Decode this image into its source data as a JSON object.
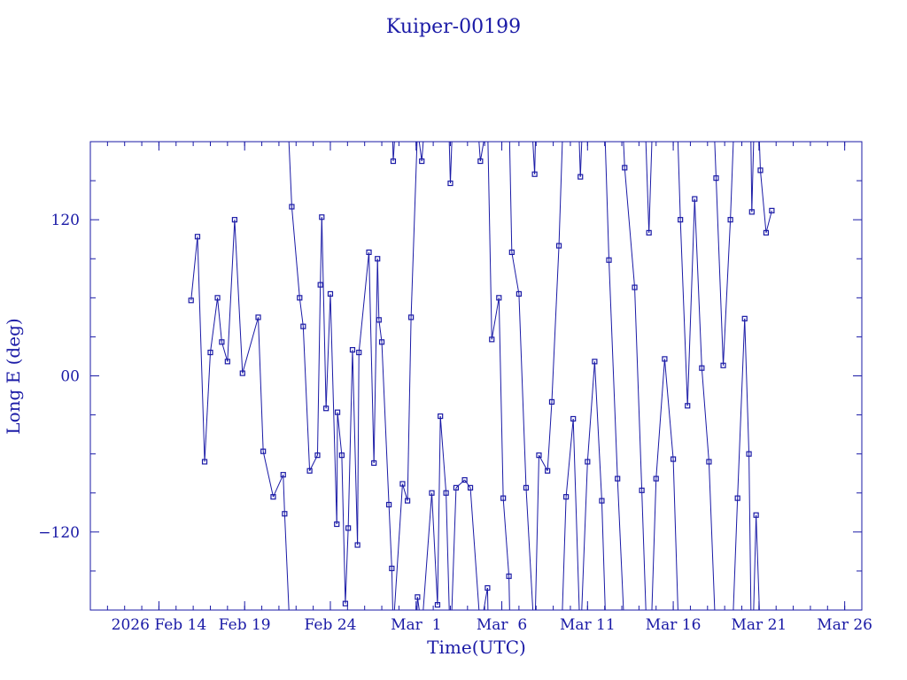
{
  "chart_data": {
    "type": "scatter",
    "title": "Kuiper-00199",
    "xlabel": "Time(UTC)",
    "ylabel": "Long E (deg)",
    "ylim": [
      -180,
      180
    ],
    "xlim": [
      "2026-02-10",
      "2026-03-27"
    ],
    "yticks": [
      {
        "value": 120,
        "label": "120"
      },
      {
        "value": 0,
        "label": "00"
      },
      {
        "value": -120,
        "label": "−120"
      }
    ],
    "xticks": [
      {
        "date": "2026-02-14",
        "label": "2026 Feb 14"
      },
      {
        "date": "2026-02-19",
        "label": "Feb 19"
      },
      {
        "date": "2026-02-24",
        "label": "Feb 24"
      },
      {
        "date": "2026-03-01",
        "label": "Mar  1"
      },
      {
        "date": "2026-03-06",
        "label": "Mar  6"
      },
      {
        "date": "2026-03-11",
        "label": "Mar 11"
      },
      {
        "date": "2026-03-16",
        "label": "Mar 16"
      },
      {
        "date": "2026-03-21",
        "label": "Mar 21"
      },
      {
        "date": "2026-03-26",
        "label": "Mar 26"
      }
    ],
    "grid": false,
    "line_color": "#1a1aa6",
    "marker": "square",
    "series": [
      {
        "points": [
          [
            "2026-02-15T21:00",
            58
          ],
          [
            "2026-02-16T06:00",
            107
          ],
          [
            "2026-02-16T16:00",
            -66
          ],
          [
            "2026-02-17T00:00",
            18
          ],
          [
            "2026-02-17T10:00",
            60
          ],
          [
            "2026-02-17T16:00",
            26
          ],
          [
            "2026-02-18T00:00",
            11
          ],
          [
            "2026-02-18T10:00",
            120
          ],
          [
            "2026-02-18T21:00",
            2
          ],
          [
            "2026-02-19T19:00",
            45
          ],
          [
            "2026-02-20T02:00",
            -58
          ],
          [
            "2026-02-20T16:00",
            -93
          ],
          [
            "2026-02-21T06:00",
            -76
          ],
          [
            "2026-02-21T08:00",
            -106
          ],
          [
            "2026-02-21T18:00",
            130
          ],
          [
            "2026-02-22T05:00",
            60
          ],
          [
            "2026-02-22T10:00",
            38
          ],
          [
            "2026-02-22T19:00",
            -73
          ],
          [
            "2026-02-23T06:00",
            -61
          ],
          [
            "2026-02-23T10:00",
            70
          ],
          [
            "2026-02-23T12:00",
            122
          ],
          [
            "2026-02-23T18:00",
            -25
          ],
          [
            "2026-02-24T00:00",
            63
          ],
          [
            "2026-02-24T09:00",
            -114
          ],
          [
            "2026-02-24T10:00",
            -28
          ],
          [
            "2026-02-24T16:00",
            -61
          ],
          [
            "2026-02-24T21:00",
            -175
          ],
          [
            "2026-02-25T01:00",
            -117
          ],
          [
            "2026-02-25T07:00",
            20
          ],
          [
            "2026-02-25T14:00",
            -130
          ],
          [
            "2026-02-25T16:00",
            18
          ],
          [
            "2026-02-26T06:00",
            95
          ],
          [
            "2026-02-26T13:00",
            -67
          ],
          [
            "2026-02-26T18:00",
            90
          ],
          [
            "2026-02-26T20:00",
            43
          ],
          [
            "2026-02-27T00:00",
            26
          ],
          [
            "2026-02-27T10:00",
            -99
          ],
          [
            "2026-02-27T14:00",
            -148
          ],
          [
            "2026-02-27T16:00",
            165
          ],
          [
            "2026-02-28T05:00",
            -83
          ],
          [
            "2026-02-28T12:00",
            -96
          ],
          [
            "2026-02-28T17:00",
            45
          ],
          [
            "2026-03-01T02:00",
            -170
          ],
          [
            "2026-03-01T08:00",
            165
          ],
          [
            "2026-03-01T22:00",
            -90
          ],
          [
            "2026-03-02T06:00",
            -176
          ],
          [
            "2026-03-02T10:00",
            -31
          ],
          [
            "2026-03-02T18:00",
            -90
          ],
          [
            "2026-03-03T00:00",
            148
          ],
          [
            "2026-03-03T08:00",
            -86
          ],
          [
            "2026-03-03T20:00",
            -80
          ],
          [
            "2026-03-04T04:00",
            -86
          ],
          [
            "2026-03-04T18:00",
            165
          ],
          [
            "2026-03-05T04:00",
            -163
          ],
          [
            "2026-03-05T10:00",
            28
          ],
          [
            "2026-03-05T20:00",
            60
          ],
          [
            "2026-03-06T02:00",
            -94
          ],
          [
            "2026-03-06T10:00",
            -154
          ],
          [
            "2026-03-06T14:00",
            95
          ],
          [
            "2026-03-07T00:00",
            63
          ],
          [
            "2026-03-07T10:00",
            -86
          ],
          [
            "2026-03-07T22:00",
            155
          ],
          [
            "2026-03-08T04:00",
            -61
          ],
          [
            "2026-03-08T16:00",
            -73
          ],
          [
            "2026-03-08T22:00",
            -20
          ],
          [
            "2026-03-09T08:00",
            100
          ],
          [
            "2026-03-09T18:00",
            -93
          ],
          [
            "2026-03-10T04:00",
            -33
          ],
          [
            "2026-03-10T14:00",
            153
          ],
          [
            "2026-03-11T00:00",
            -66
          ],
          [
            "2026-03-11T10:00",
            11
          ],
          [
            "2026-03-11T20:00",
            -96
          ],
          [
            "2026-03-12T06:00",
            89
          ],
          [
            "2026-03-12T18:00",
            -79
          ],
          [
            "2026-03-13T04:00",
            160
          ],
          [
            "2026-03-13T18:00",
            68
          ],
          [
            "2026-03-14T04:00",
            -88
          ],
          [
            "2026-03-14T14:00",
            110
          ],
          [
            "2026-03-15T00:00",
            -79
          ],
          [
            "2026-03-15T12:00",
            13
          ],
          [
            "2026-03-16T00:00",
            -64
          ],
          [
            "2026-03-16T10:00",
            120
          ],
          [
            "2026-03-16T20:00",
            -23
          ],
          [
            "2026-03-17T06:00",
            136
          ],
          [
            "2026-03-17T16:00",
            6
          ],
          [
            "2026-03-18T02:00",
            -66
          ],
          [
            "2026-03-18T12:00",
            152
          ],
          [
            "2026-03-18T22:00",
            8
          ],
          [
            "2026-03-19T08:00",
            120
          ],
          [
            "2026-03-19T18:00",
            -94
          ],
          [
            "2026-03-20T04:00",
            44
          ],
          [
            "2026-03-20T10:00",
            -60
          ],
          [
            "2026-03-20T14:00",
            126
          ],
          [
            "2026-03-20T20:00",
            -107
          ],
          [
            "2026-03-21T02:00",
            158
          ],
          [
            "2026-03-21T10:00",
            110
          ],
          [
            "2026-03-21T18:00",
            127
          ]
        ]
      }
    ]
  }
}
